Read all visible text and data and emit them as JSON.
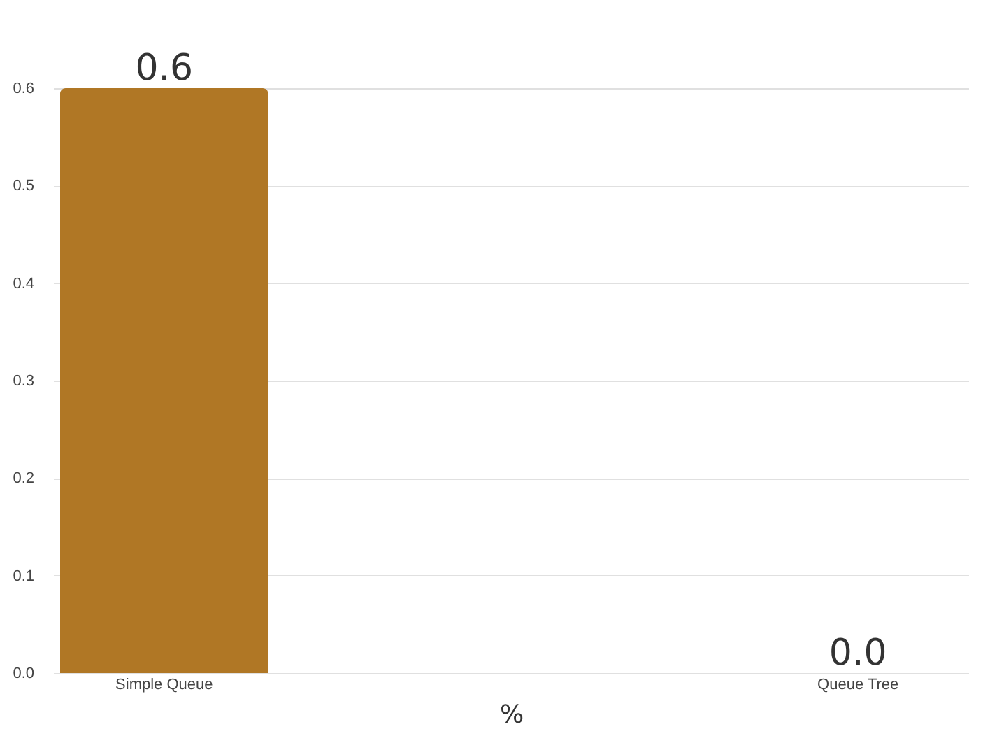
{
  "chart_data": {
    "type": "bar",
    "xlabel": "%",
    "categories": [
      "Simple Queue",
      "Queue Tree"
    ],
    "values": [
      0.6,
      0
    ],
    "value_labels": [
      "0.6",
      "0.0"
    ],
    "color": "#b07725",
    "ylim": [
      0,
      0.6
    ],
    "yticks": [
      {
        "value": 0,
        "label": "0.0"
      },
      0.1,
      0.2,
      0.3,
      0.4,
      0.5,
      0.6
    ],
    "grid": "y"
  }
}
